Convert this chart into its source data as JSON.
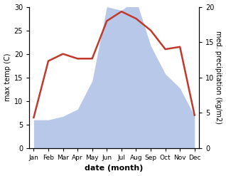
{
  "months": [
    "Jan",
    "Feb",
    "Mar",
    "Apr",
    "May",
    "Jun",
    "Jul",
    "Aug",
    "Sep",
    "Oct",
    "Nov",
    "Dec"
  ],
  "temperature": [
    6.5,
    18.5,
    20.0,
    19.0,
    19.0,
    27.0,
    29.0,
    27.5,
    25.0,
    21.0,
    21.5,
    7.0
  ],
  "precipitation_right": [
    4.0,
    4.0,
    4.5,
    5.5,
    9.5,
    20.0,
    19.5,
    21.0,
    14.5,
    10.5,
    8.5,
    4.5
  ],
  "temp_color": "#c0392b",
  "precip_color": "#b8c8e8",
  "left_ylim": [
    0,
    30
  ],
  "right_ylim": [
    0,
    20
  ],
  "left_yticks": [
    0,
    5,
    10,
    15,
    20,
    25,
    30
  ],
  "right_yticks": [
    0,
    5,
    10,
    15,
    20
  ],
  "xlabel": "date (month)",
  "ylabel_left": "max temp (C)",
  "ylabel_right": "med. precipitation (kg/m2)",
  "bg_color": "#ffffff",
  "temp_linewidth": 1.8,
  "ylabel_fontsize": 7,
  "tick_labelsize": 7,
  "xlabel_fontsize": 8
}
